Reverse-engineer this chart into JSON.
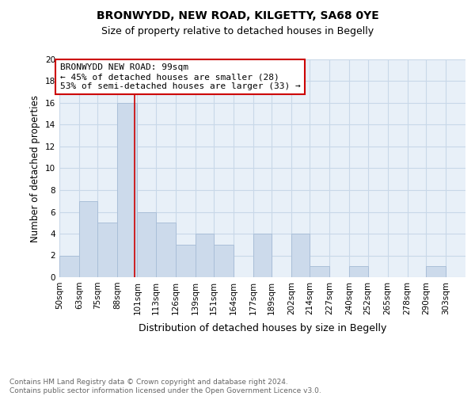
{
  "title1": "BRONWYDD, NEW ROAD, KILGETTY, SA68 0YE",
  "title2": "Size of property relative to detached houses in Begelly",
  "xlabel": "Distribution of detached houses by size in Begelly",
  "ylabel": "Number of detached properties",
  "footnote": "Contains HM Land Registry data © Crown copyright and database right 2024.\nContains public sector information licensed under the Open Government Licence v3.0.",
  "bin_edges": [
    50,
    63,
    75,
    88,
    101,
    113,
    126,
    139,
    151,
    164,
    177,
    189,
    202,
    214,
    227,
    240,
    252,
    265,
    278,
    290,
    303,
    316
  ],
  "bar_heights": [
    2,
    7,
    5,
    16,
    6,
    5,
    3,
    4,
    3,
    0,
    4,
    0,
    4,
    1,
    0,
    1,
    0,
    0,
    0,
    1,
    0
  ],
  "bar_color": "#ccdaeb",
  "bar_edgecolor": "#aabfd8",
  "grid_color": "#c8d8e8",
  "subject_value": 99,
  "annotation_title": "BRONWYDD NEW ROAD: 99sqm",
  "annotation_line1": "← 45% of detached houses are smaller (28)",
  "annotation_line2": "53% of semi-detached houses are larger (33) →",
  "annotation_box_color": "#ffffff",
  "annotation_border_color": "#cc0000",
  "vline_color": "#cc0000",
  "ylim": [
    0,
    20
  ],
  "yticks": [
    0,
    2,
    4,
    6,
    8,
    10,
    12,
    14,
    16,
    18,
    20
  ],
  "tick_labels": [
    "50sqm",
    "63sqm",
    "75sqm",
    "88sqm",
    "101sqm",
    "113sqm",
    "126sqm",
    "139sqm",
    "151sqm",
    "164sqm",
    "177sqm",
    "189sqm",
    "202sqm",
    "214sqm",
    "227sqm",
    "240sqm",
    "252sqm",
    "265sqm",
    "278sqm",
    "290sqm",
    "303sqm"
  ],
  "background_color": "#e8f0f8",
  "title1_fontsize": 10,
  "title2_fontsize": 9,
  "xlabel_fontsize": 9,
  "ylabel_fontsize": 8.5,
  "tick_fontsize": 7.5,
  "footnote_fontsize": 6.5,
  "footnote_color": "#666666"
}
